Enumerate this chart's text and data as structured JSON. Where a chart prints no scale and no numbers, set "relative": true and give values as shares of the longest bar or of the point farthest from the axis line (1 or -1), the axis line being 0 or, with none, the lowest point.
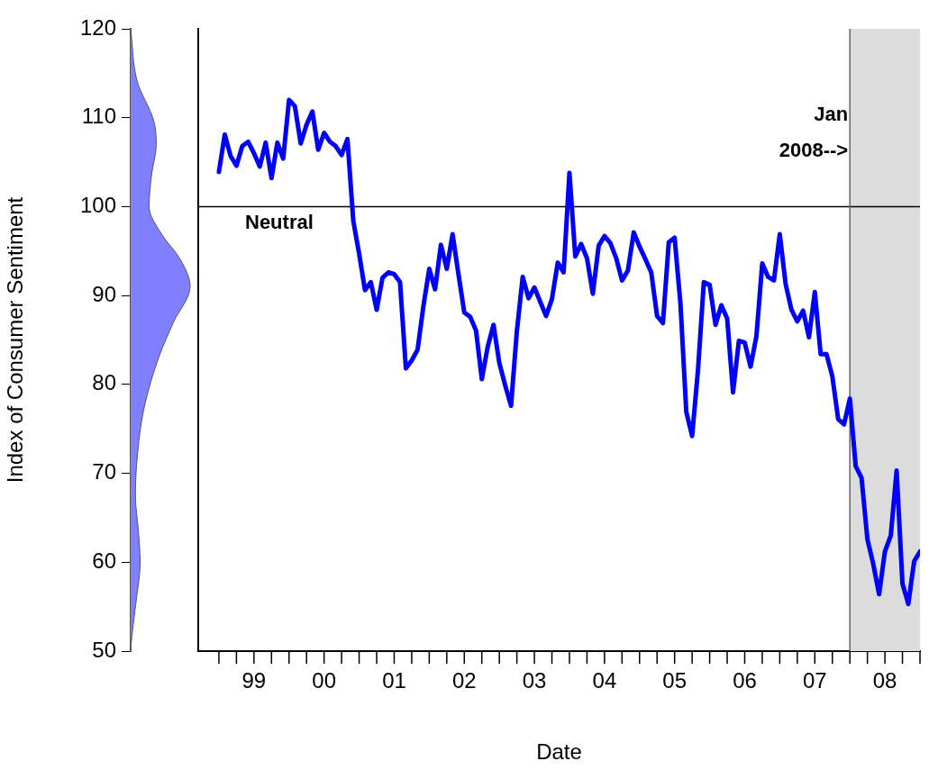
{
  "chart_data": [
    {
      "type": "area",
      "orientation": "horizontal",
      "relative": true,
      "ylabel": "Index of Consumer Sentiment",
      "tick_labels": "y",
      "grid": false,
      "legend": false,
      "marker": "none",
      "color": "#8080ff",
      "x": [
        50,
        51,
        55.5,
        60,
        63.5,
        67.5,
        72.5,
        77.5,
        83,
        87,
        91,
        94,
        97,
        100,
        103.5,
        107,
        109.6,
        114.1,
        120
      ],
      "values": [
        0,
        0.01,
        0.09,
        0.16,
        0.13,
        0.08,
        0.12,
        0.23,
        0.47,
        0.72,
        1,
        0.84,
        0.51,
        0.31,
        0.35,
        0.43,
        0.39,
        0.11,
        0
      ],
      "ylim": [
        50,
        120
      ],
      "yticks": [
        50,
        60,
        70,
        80,
        90,
        100,
        110,
        120
      ]
    },
    {
      "type": "line",
      "xlabel": "Date",
      "tick_labels": "x",
      "grid": false,
      "legend": false,
      "marker": "none",
      "line_style": "solid",
      "x": [
        "1999-01",
        "1999-02",
        "1999-03",
        "1999-04",
        "1999-05",
        "1999-06",
        "1999-07",
        "1999-08",
        "1999-09",
        "1999-10",
        "1999-11",
        "1999-12",
        "2000-01",
        "2000-02",
        "2000-03",
        "2000-04",
        "2000-05",
        "2000-06",
        "2000-07",
        "2000-08",
        "2000-09",
        "2000-10",
        "2000-11",
        "2000-12",
        "2001-01",
        "2001-02",
        "2001-03",
        "2001-04",
        "2001-05",
        "2001-06",
        "2001-07",
        "2001-08",
        "2001-09",
        "2001-10",
        "2001-11",
        "2001-12",
        "2002-01",
        "2002-02",
        "2002-03",
        "2002-04",
        "2002-05",
        "2002-06",
        "2002-07",
        "2002-08",
        "2002-09",
        "2002-10",
        "2002-11",
        "2002-12",
        "2003-01",
        "2003-02",
        "2003-03",
        "2003-04",
        "2003-05",
        "2003-06",
        "2003-07",
        "2003-08",
        "2003-09",
        "2003-10",
        "2003-11",
        "2003-12",
        "2004-01",
        "2004-02",
        "2004-03",
        "2004-04",
        "2004-05",
        "2004-06",
        "2004-07",
        "2004-08",
        "2004-09",
        "2004-10",
        "2004-11",
        "2004-12",
        "2005-01",
        "2005-02",
        "2005-03",
        "2005-04",
        "2005-05",
        "2005-06",
        "2005-07",
        "2005-08",
        "2005-09",
        "2005-10",
        "2005-11",
        "2005-12",
        "2006-01",
        "2006-02",
        "2006-03",
        "2006-04",
        "2006-05",
        "2006-06",
        "2006-07",
        "2006-08",
        "2006-09",
        "2006-10",
        "2006-11",
        "2006-12",
        "2007-01",
        "2007-02",
        "2007-03",
        "2007-04",
        "2007-05",
        "2007-06",
        "2007-07",
        "2007-08",
        "2007-09",
        "2007-10",
        "2007-11",
        "2007-12",
        "2008-01",
        "2008-02",
        "2008-03",
        "2008-04",
        "2008-05",
        "2008-06",
        "2008-07",
        "2008-08",
        "2008-09",
        "2008-10",
        "2008-11",
        "2008-12",
        "2009-01"
      ],
      "series": [
        {
          "color": "#0000ff",
          "values": [
            103.9,
            108.1,
            105.7,
            104.6,
            106.8,
            107.3,
            106.0,
            104.5,
            107.2,
            103.2,
            107.2,
            105.4,
            112.0,
            111.3,
            107.1,
            109.2,
            110.7,
            106.4,
            108.3,
            107.3,
            106.8,
            105.8,
            107.6,
            98.4,
            94.7,
            90.6,
            91.5,
            88.4,
            92.0,
            92.6,
            92.4,
            91.5,
            81.8,
            82.7,
            83.9,
            88.8,
            93.0,
            90.7,
            95.7,
            93.0,
            96.9,
            92.4,
            88.1,
            87.6,
            86.1,
            80.6,
            84.2,
            86.7,
            82.4,
            79.9,
            77.6,
            86.0,
            92.1,
            89.7,
            90.9,
            89.3,
            87.7,
            89.6,
            93.7,
            92.6,
            103.8,
            94.4,
            95.8,
            94.2,
            90.2,
            95.6,
            96.7,
            95.9,
            94.2,
            91.7,
            92.8,
            97.1,
            95.5,
            94.1,
            92.6,
            87.7,
            86.9,
            96.0,
            96.5,
            89.1,
            76.9,
            74.2,
            81.6,
            91.5,
            91.2,
            86.7,
            88.9,
            87.4,
            79.1,
            84.9,
            84.7,
            82.0,
            85.4,
            93.6,
            92.1,
            91.7,
            96.9,
            91.3,
            88.4,
            87.1,
            88.3,
            85.3,
            90.4,
            83.4,
            83.4,
            80.9,
            76.1,
            75.5,
            78.4,
            70.8,
            69.5,
            62.6,
            59.8,
            56.4,
            61.2,
            63.0,
            70.3,
            57.6,
            55.3,
            60.1,
            61.2
          ]
        }
      ],
      "xlim": [
        "1998-09-15",
        "2009-01"
      ],
      "xticks": [
        {
          "value": "1999-01",
          "label": null
        },
        {
          "value": "1999-04",
          "label": null
        },
        {
          "value": "1999-07",
          "label": "99"
        },
        {
          "value": "1999-10",
          "label": null
        },
        {
          "value": "2000-01",
          "label": null
        },
        {
          "value": "2000-04",
          "label": null
        },
        {
          "value": "2000-07",
          "label": "00"
        },
        {
          "value": "2000-10",
          "label": null
        },
        {
          "value": "2001-01",
          "label": null
        },
        {
          "value": "2001-04",
          "label": null
        },
        {
          "value": "2001-07",
          "label": "01"
        },
        {
          "value": "2001-10",
          "label": null
        },
        {
          "value": "2002-01",
          "label": null
        },
        {
          "value": "2002-04",
          "label": null
        },
        {
          "value": "2002-07",
          "label": "02"
        },
        {
          "value": "2002-10",
          "label": null
        },
        {
          "value": "2003-01",
          "label": null
        },
        {
          "value": "2003-04",
          "label": null
        },
        {
          "value": "2003-07",
          "label": "03"
        },
        {
          "value": "2003-10",
          "label": null
        },
        {
          "value": "2004-01",
          "label": null
        },
        {
          "value": "2004-04",
          "label": null
        },
        {
          "value": "2004-07",
          "label": "04"
        },
        {
          "value": "2004-10",
          "label": null
        },
        {
          "value": "2005-01",
          "label": null
        },
        {
          "value": "2005-04",
          "label": null
        },
        {
          "value": "2005-07",
          "label": "05"
        },
        {
          "value": "2005-10",
          "label": null
        },
        {
          "value": "2006-01",
          "label": null
        },
        {
          "value": "2006-04",
          "label": null
        },
        {
          "value": "2006-07",
          "label": "06"
        },
        {
          "value": "2006-10",
          "label": null
        },
        {
          "value": "2007-01",
          "label": null
        },
        {
          "value": "2007-04",
          "label": null
        },
        {
          "value": "2007-07",
          "label": "07"
        },
        {
          "value": "2007-10",
          "label": null
        },
        {
          "value": "2008-01",
          "label": null
        },
        {
          "value": "2008-04",
          "label": null
        },
        {
          "value": "2008-07",
          "label": "08"
        },
        {
          "value": "2008-10",
          "label": null
        },
        {
          "value": "2009-01",
          "label": null
        }
      ],
      "ylim": [
        50,
        120
      ],
      "ref_lines": [
        {
          "axis": "y",
          "value": 100,
          "label": "Neutral",
          "color": "#000000"
        },
        {
          "axis": "x",
          "value": "2008-01",
          "color": "#666666"
        }
      ],
      "bands": [
        {
          "axis": "x",
          "from": "2008-01",
          "to": "2009-01",
          "label": "Jan\n2008-->",
          "color": "#dcdcdc"
        }
      ]
    }
  ]
}
